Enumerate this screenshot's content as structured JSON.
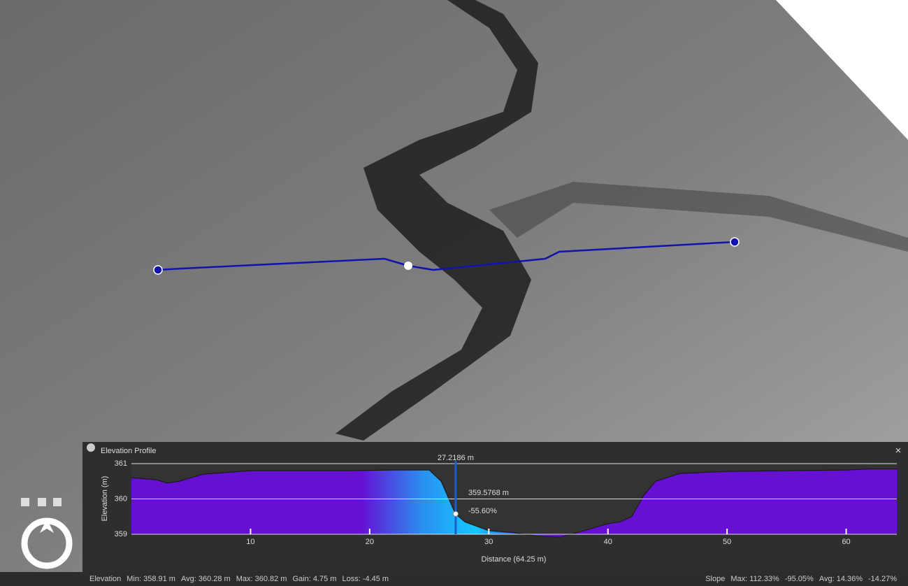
{
  "panel": {
    "title": "Elevation Profile"
  },
  "chart_data": {
    "type": "area",
    "x_label": "Distance (64.25 m)",
    "y_label": "Elevation (m)",
    "x": [
      0,
      2,
      3,
      4,
      5,
      6,
      8,
      10,
      14,
      18,
      22,
      25,
      26,
      27.2,
      28,
      30,
      32,
      34,
      36,
      38,
      40,
      41,
      42,
      43,
      44,
      46,
      50,
      55,
      60,
      62,
      64.25
    ],
    "values": [
      360.6,
      360.55,
      360.45,
      360.5,
      360.6,
      360.7,
      360.75,
      360.8,
      360.8,
      360.8,
      360.82,
      360.82,
      360.5,
      359.58,
      359.35,
      359.1,
      359.05,
      358.95,
      358.92,
      359.1,
      359.3,
      359.35,
      359.5,
      360.1,
      360.5,
      360.72,
      360.78,
      360.8,
      360.82,
      360.85,
      360.85
    ],
    "color": "#6610d4",
    "xlim": [
      0,
      64.25
    ],
    "xticks": [
      10,
      20,
      30,
      40,
      50,
      60
    ],
    "ylim": [
      359,
      361
    ],
    "yticks": [
      359,
      360,
      361
    ],
    "grid": true,
    "cursor": {
      "x": 27.2186,
      "x_label": "27.2186 m",
      "y": 359.5768,
      "y_label": "359.5768 m",
      "slope_label": "-55.60%"
    }
  },
  "status": {
    "elevation": {
      "label": "Elevation",
      "items": [
        "Min: 358.91 m",
        "Avg: 360.28 m",
        "Max: 360.82 m",
        "Gain: 4.75 m",
        "Loss: -4.45 m"
      ]
    },
    "slope": {
      "label": "Slope",
      "items": [
        "Max: 112.33%",
        "-95.05%",
        "Avg: 14.36%",
        "-14.27%"
      ]
    }
  }
}
